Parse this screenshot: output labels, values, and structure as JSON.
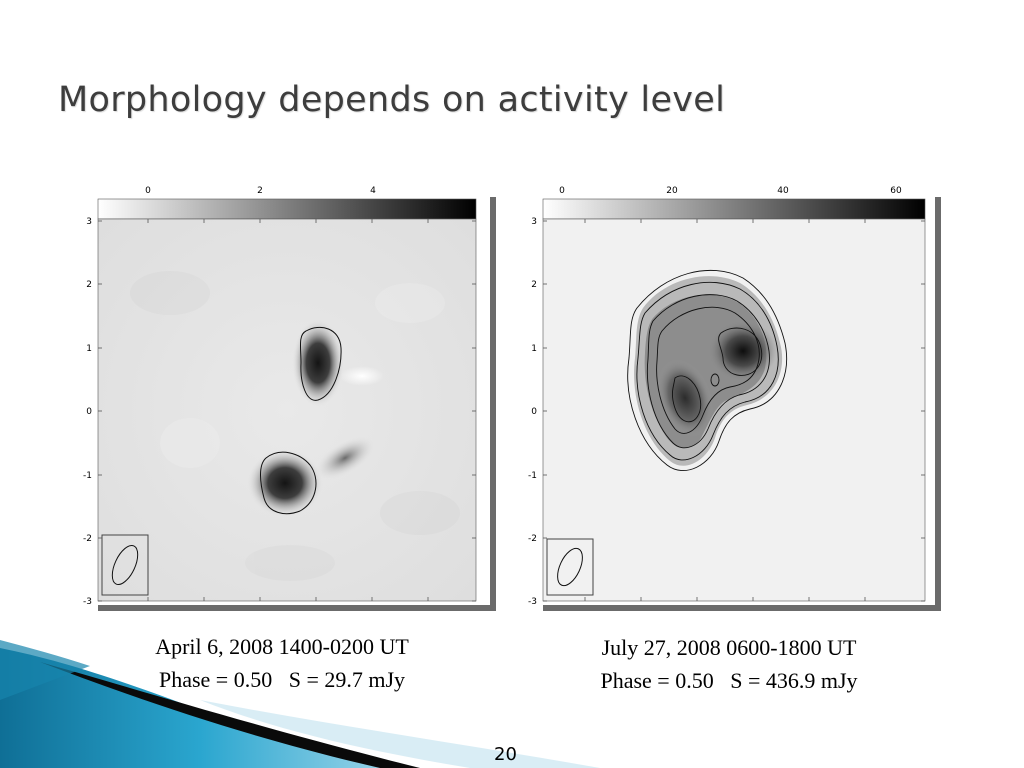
{
  "slide": {
    "title": "Morphology depends on activity level",
    "page_number": "20"
  },
  "panels": [
    {
      "colorbar_ticks": [
        "0",
        "2",
        "4"
      ],
      "y_ticks": [
        "3",
        "2",
        "1",
        "0",
        "-1",
        "-2",
        "-3"
      ],
      "caption_line1": "April 6, 2008 1400-0200 UT",
      "caption_line2": "Phase = 0.50   S = 29.7 mJy"
    },
    {
      "colorbar_ticks": [
        "0",
        "20",
        "40",
        "60"
      ],
      "y_ticks": [
        "3",
        "2",
        "1",
        "0",
        "-1",
        "-2",
        "-3"
      ],
      "caption_line1": "July 27, 2008 0600-1800 UT",
      "caption_line2": "Phase = 0.50   S = 436.9 mJy"
    }
  ],
  "colors": {
    "title": "#3d3d3d",
    "accent_blue": "#1f8fb5",
    "accent_dark": "#0a0a0a"
  }
}
